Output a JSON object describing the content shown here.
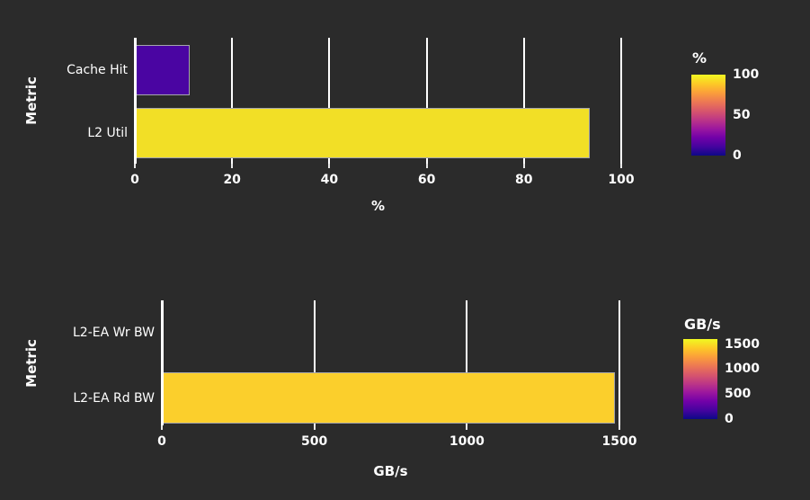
{
  "background_color": "#2b2b2b",
  "text_color": "#ffffff",
  "gridline_color": "#ffffff",
  "plasma_gradient": [
    "#0d0887",
    "#46039f",
    "#7201a8",
    "#9c179e",
    "#bd3786",
    "#d8576b",
    "#ed7953",
    "#fb9f3a",
    "#fdca26",
    "#f0f921"
  ],
  "chart_data": [
    {
      "type": "bar",
      "orientation": "horizontal",
      "categories": [
        "Cache Hit",
        "L2 Util"
      ],
      "values": [
        11.3,
        93.6
      ],
      "bar_colors": [
        "#4a05a2",
        "#f2df26"
      ],
      "xlabel": "%",
      "ylabel": "Metric",
      "xlim": [
        0,
        100
      ],
      "xticks": [
        0,
        20,
        40,
        60,
        80,
        100
      ],
      "grid": "vertical white gridlines",
      "legend_position": "right",
      "colorbar": {
        "title": "%",
        "ticks": [
          0,
          50,
          100
        ],
        "min": 0,
        "max": 100
      }
    },
    {
      "type": "bar",
      "orientation": "horizontal",
      "categories": [
        "L2-EA Wr BW",
        "L2-EA Rd BW"
      ],
      "values": [
        0,
        1485
      ],
      "bar_colors": [
        "#0d0887",
        "#fbcf2c"
      ],
      "xlabel": "GB/s",
      "ylabel": "Metric",
      "xlim": [
        0,
        1600
      ],
      "xticks": [
        0,
        500,
        1000,
        1500
      ],
      "grid": "vertical white gridlines",
      "legend_position": "right",
      "colorbar": {
        "title": "GB/s",
        "ticks": [
          0,
          500,
          1000,
          1500
        ],
        "min": 0,
        "max": 1600
      }
    }
  ]
}
